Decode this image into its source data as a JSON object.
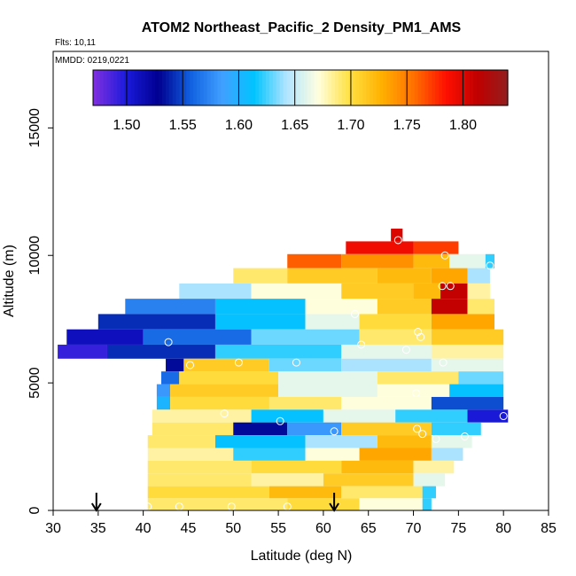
{
  "chart_data": {
    "type": "heatmap",
    "title": "ATOM2 Northeast_Pacific_2 Density_PM1_AMS",
    "flights": "Flts: 10,11",
    "mmdd": "MMDD: 0219,0221",
    "xlabel": "Latitude (deg N)",
    "ylabel": "Altitude (m)",
    "xlim": [
      30,
      85
    ],
    "ylim": [
      0,
      18000
    ],
    "x_ticks": [
      30,
      35,
      40,
      45,
      50,
      55,
      60,
      65,
      70,
      75,
      80,
      85
    ],
    "y_ticks": [
      0,
      5000,
      10000,
      15000
    ],
    "colorbar": {
      "range": [
        1.47,
        1.84
      ],
      "ticks": [
        1.5,
        1.55,
        1.6,
        1.65,
        1.7,
        1.75,
        1.8
      ],
      "tick_labels": [
        "1.50",
        "1.55",
        "1.60",
        "1.65",
        "1.70",
        "1.75",
        "1.80"
      ],
      "colors": [
        "#7b2fe0",
        "#1a1adb",
        "#000090",
        "#1060e0",
        "#40a0ff",
        "#00c4ff",
        "#b0e4ff",
        "#ffffe0",
        "#ffe040",
        "#ffb000",
        "#ff7000",
        "#ff1000",
        "#c00000",
        "#902020"
      ]
    },
    "altitude_bands": [
      {
        "alt": 10800,
        "segments": [
          {
            "lat": [
              67.5,
              68.8
            ],
            "value": 1.8
          }
        ]
      },
      {
        "alt": 10300,
        "segments": [
          {
            "lat": [
              62.5,
              70
            ],
            "value": 1.79
          },
          {
            "lat": [
              70,
              75
            ],
            "value": 1.77
          }
        ]
      },
      {
        "alt": 9800,
        "segments": [
          {
            "lat": [
              56,
              62
            ],
            "value": 1.76
          },
          {
            "lat": [
              62,
              70
            ],
            "value": 1.74
          },
          {
            "lat": [
              70,
              74
            ],
            "value": 1.72
          },
          {
            "lat": [
              74,
              78
            ],
            "value": 1.66
          },
          {
            "lat": [
              78,
              79
            ],
            "value": 1.62
          }
        ]
      },
      {
        "alt": 9200,
        "segments": [
          {
            "lat": [
              50,
              56
            ],
            "value": 1.69
          },
          {
            "lat": [
              56,
              66
            ],
            "value": 1.71
          },
          {
            "lat": [
              66,
              72
            ],
            "value": 1.72
          },
          {
            "lat": [
              72,
              76
            ],
            "value": 1.73
          },
          {
            "lat": [
              76,
              78.5
            ],
            "value": 1.64
          }
        ]
      },
      {
        "alt": 8600,
        "segments": [
          {
            "lat": [
              44,
              52
            ],
            "value": 1.64
          },
          {
            "lat": [
              52,
              62
            ],
            "value": 1.67
          },
          {
            "lat": [
              62,
              70
            ],
            "value": 1.71
          },
          {
            "lat": [
              70,
              73
            ],
            "value": 1.72
          },
          {
            "lat": [
              73,
              76
            ],
            "value": 1.81
          },
          {
            "lat": [
              76,
              78.5
            ],
            "value": 1.68
          }
        ]
      },
      {
        "alt": 8000,
        "segments": [
          {
            "lat": [
              38,
              48
            ],
            "value": 1.57
          },
          {
            "lat": [
              48,
              58
            ],
            "value": 1.61
          },
          {
            "lat": [
              58,
              66
            ],
            "value": 1.67
          },
          {
            "lat": [
              66,
              72
            ],
            "value": 1.71
          },
          {
            "lat": [
              72,
              76
            ],
            "value": 1.81
          },
          {
            "lat": [
              76,
              79
            ],
            "value": 1.69
          }
        ]
      },
      {
        "alt": 7400,
        "segments": [
          {
            "lat": [
              35,
              48
            ],
            "value": 1.54
          },
          {
            "lat": [
              48,
              58
            ],
            "value": 1.61
          },
          {
            "lat": [
              58,
              64
            ],
            "value": 1.66
          },
          {
            "lat": [
              64,
              72
            ],
            "value": 1.7
          },
          {
            "lat": [
              72,
              79
            ],
            "value": 1.73
          }
        ]
      },
      {
        "alt": 6800,
        "segments": [
          {
            "lat": [
              31.5,
              40
            ],
            "value": 1.51
          },
          {
            "lat": [
              40,
              52
            ],
            "value": 1.56
          },
          {
            "lat": [
              52,
              64
            ],
            "value": 1.63
          },
          {
            "lat": [
              64,
              72
            ],
            "value": 1.69
          },
          {
            "lat": [
              72,
              80
            ],
            "value": 1.71
          }
        ]
      },
      {
        "alt": 6200,
        "segments": [
          {
            "lat": [
              30.5,
              36
            ],
            "value": 1.49
          },
          {
            "lat": [
              36,
              48
            ],
            "value": 1.54
          },
          {
            "lat": [
              48,
              62
            ],
            "value": 1.62
          },
          {
            "lat": [
              62,
              72
            ],
            "value": 1.66
          },
          {
            "lat": [
              72,
              80
            ],
            "value": 1.68
          }
        ]
      },
      {
        "alt": 5700,
        "segments": [
          {
            "lat": [
              42.5,
              44.5
            ],
            "value": 1.53
          },
          {
            "lat": [
              44.5,
              54
            ],
            "value": 1.71
          },
          {
            "lat": [
              54,
              62
            ],
            "value": 1.63
          },
          {
            "lat": [
              62,
              72
            ],
            "value": 1.64
          },
          {
            "lat": [
              72,
              80
            ],
            "value": 1.66
          }
        ]
      },
      {
        "alt": 5200,
        "segments": [
          {
            "lat": [
              42,
              44
            ],
            "value": 1.56
          },
          {
            "lat": [
              44,
              55
            ],
            "value": 1.7
          },
          {
            "lat": [
              55,
              66
            ],
            "value": 1.66
          },
          {
            "lat": [
              66,
              75
            ],
            "value": 1.69
          },
          {
            "lat": [
              75,
              80
            ],
            "value": 1.63
          }
        ]
      },
      {
        "alt": 4700,
        "segments": [
          {
            "lat": [
              41.5,
              43
            ],
            "value": 1.58
          },
          {
            "lat": [
              43,
              55
            ],
            "value": 1.71
          },
          {
            "lat": [
              55,
              66
            ],
            "value": 1.66
          },
          {
            "lat": [
              66,
              74
            ],
            "value": 1.67
          },
          {
            "lat": [
              74,
              80
            ],
            "value": 1.61
          }
        ]
      },
      {
        "alt": 4200,
        "segments": [
          {
            "lat": [
              41.5,
              43
            ],
            "value": 1.6
          },
          {
            "lat": [
              43,
              54
            ],
            "value": 1.7
          },
          {
            "lat": [
              54,
              62
            ],
            "value": 1.69
          },
          {
            "lat": [
              62,
              72
            ],
            "value": 1.67
          },
          {
            "lat": [
              72,
              80
            ],
            "value": 1.55
          }
        ]
      },
      {
        "alt": 3700,
        "segments": [
          {
            "lat": [
              41,
              52
            ],
            "value": 1.68
          },
          {
            "lat": [
              52,
              60
            ],
            "value": 1.61
          },
          {
            "lat": [
              60,
              68
            ],
            "value": 1.66
          },
          {
            "lat": [
              68,
              76
            ],
            "value": 1.62
          },
          {
            "lat": [
              76,
              80.5
            ],
            "value": 1.5
          }
        ]
      },
      {
        "alt": 3200,
        "segments": [
          {
            "lat": [
              41,
              50
            ],
            "value": 1.69
          },
          {
            "lat": [
              50,
              56
            ],
            "value": 1.53
          },
          {
            "lat": [
              56,
              62
            ],
            "value": 1.58
          },
          {
            "lat": [
              62,
              72
            ],
            "value": 1.71
          },
          {
            "lat": [
              72,
              77.5
            ],
            "value": 1.62
          }
        ]
      },
      {
        "alt": 2700,
        "segments": [
          {
            "lat": [
              40.5,
              48
            ],
            "value": 1.69
          },
          {
            "lat": [
              48,
              58
            ],
            "value": 1.61
          },
          {
            "lat": [
              58,
              66
            ],
            "value": 1.64
          },
          {
            "lat": [
              66,
              72
            ],
            "value": 1.72
          },
          {
            "lat": [
              72,
              76.5
            ],
            "value": 1.66
          }
        ]
      },
      {
        "alt": 2200,
        "segments": [
          {
            "lat": [
              40.5,
              50
            ],
            "value": 1.68
          },
          {
            "lat": [
              50,
              58
            ],
            "value": 1.62
          },
          {
            "lat": [
              58,
              64
            ],
            "value": 1.67
          },
          {
            "lat": [
              64,
              72
            ],
            "value": 1.73
          },
          {
            "lat": [
              72,
              75.5
            ],
            "value": 1.64
          }
        ]
      },
      {
        "alt": 1700,
        "segments": [
          {
            "lat": [
              40.5,
              52
            ],
            "value": 1.69
          },
          {
            "lat": [
              52,
              62
            ],
            "value": 1.7
          },
          {
            "lat": [
              62,
              70
            ],
            "value": 1.72
          },
          {
            "lat": [
              70,
              74.5
            ],
            "value": 1.68
          }
        ]
      },
      {
        "alt": 1200,
        "segments": [
          {
            "lat": [
              40.5,
              52
            ],
            "value": 1.69
          },
          {
            "lat": [
              52,
              60
            ],
            "value": 1.68
          },
          {
            "lat": [
              60,
              70
            ],
            "value": 1.71
          },
          {
            "lat": [
              70,
              73.5
            ],
            "value": 1.66
          }
        ]
      },
      {
        "alt": 700,
        "segments": [
          {
            "lat": [
              40.5,
              54
            ],
            "value": 1.7
          },
          {
            "lat": [
              54,
              62
            ],
            "value": 1.72
          },
          {
            "lat": [
              62,
              71
            ],
            "value": 1.69
          },
          {
            "lat": [
              71,
              72.5
            ],
            "value": 1.62
          }
        ]
      },
      {
        "alt": 250,
        "segments": [
          {
            "lat": [
              40.5,
              56
            ],
            "value": 1.69
          },
          {
            "lat": [
              56,
              64
            ],
            "value": 1.7
          },
          {
            "lat": [
              64,
              71
            ],
            "value": 1.67
          },
          {
            "lat": [
              71,
              72
            ],
            "value": 1.62
          }
        ]
      }
    ],
    "markers": [
      {
        "lat": 40.5,
        "alt": 150
      },
      {
        "lat": 44,
        "alt": 150
      },
      {
        "lat": 49.8,
        "alt": 150
      },
      {
        "lat": 56,
        "alt": 150
      },
      {
        "lat": 42.8,
        "alt": 6600
      },
      {
        "lat": 45.2,
        "alt": 5700
      },
      {
        "lat": 50.6,
        "alt": 5800
      },
      {
        "lat": 57,
        "alt": 5800
      },
      {
        "lat": 49,
        "alt": 3800
      },
      {
        "lat": 55.2,
        "alt": 3500
      },
      {
        "lat": 61.2,
        "alt": 3100
      },
      {
        "lat": 63.5,
        "alt": 7700
      },
      {
        "lat": 64.2,
        "alt": 6500
      },
      {
        "lat": 69.2,
        "alt": 6300
      },
      {
        "lat": 70.5,
        "alt": 7000
      },
      {
        "lat": 70.8,
        "alt": 6800
      },
      {
        "lat": 73.3,
        "alt": 5800
      },
      {
        "lat": 70.3,
        "alt": 4600
      },
      {
        "lat": 70.4,
        "alt": 3200
      },
      {
        "lat": 71,
        "alt": 3000
      },
      {
        "lat": 72.5,
        "alt": 2800
      },
      {
        "lat": 75.7,
        "alt": 2900
      },
      {
        "lat": 80,
        "alt": 3700
      },
      {
        "lat": 68.3,
        "alt": 10600
      },
      {
        "lat": 73.5,
        "alt": 10000
      },
      {
        "lat": 78.5,
        "alt": 9600
      },
      {
        "lat": 73.2,
        "alt": 8800
      },
      {
        "lat": 74.1,
        "alt": 8800
      }
    ],
    "arrows": [
      {
        "lat": 34.8
      },
      {
        "lat": 61.2
      }
    ]
  }
}
